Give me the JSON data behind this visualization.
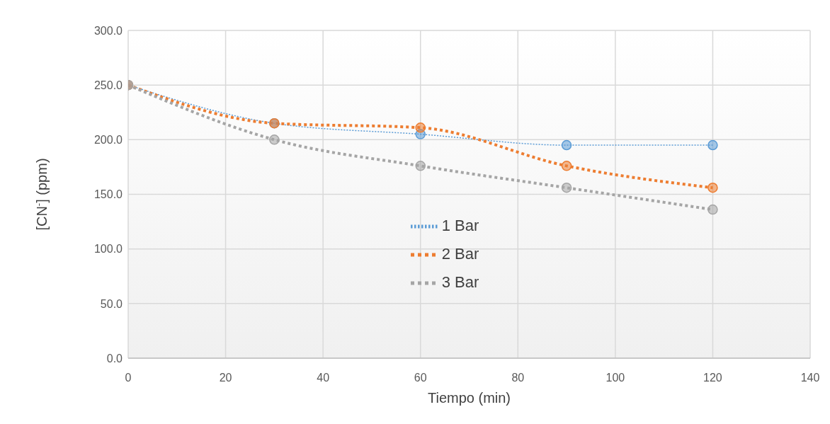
{
  "chart_data": {
    "type": "line",
    "xlabel": "Tiempo (min)",
    "ylabel": "[CN$^{-}$] (ppm)",
    "x": [
      0,
      30,
      60,
      90,
      120
    ],
    "series": [
      {
        "name": "1 Bar",
        "color": "#5b9bd5",
        "values": [
          250,
          215,
          205,
          195,
          195
        ],
        "line_style": "dotted"
      },
      {
        "name": "2 Bar",
        "color": "#ed7d31",
        "values": [
          250,
          215,
          211,
          176,
          156
        ],
        "line_style": "dashed"
      },
      {
        "name": "3 Bar",
        "color": "#a5a5a5",
        "values": [
          250,
          200,
          176,
          156,
          136
        ],
        "line_style": "dashed"
      }
    ],
    "xlim": [
      0,
      140
    ],
    "xticks": [
      0,
      20,
      40,
      60,
      80,
      100,
      120,
      140
    ],
    "ylim": [
      0,
      300
    ],
    "yticks": [
      {
        "value": 0,
        "label": "0.0"
      },
      {
        "value": 50,
        "label": "50.0"
      },
      {
        "value": 100,
        "label": "100.0"
      },
      {
        "value": 150,
        "label": "150.0"
      },
      {
        "value": 200,
        "label": "200.0"
      },
      {
        "value": 250,
        "label": "250.0"
      },
      {
        "value": 300,
        "label": "300.0"
      }
    ],
    "grid": true,
    "legend": "center",
    "marker": "circle"
  }
}
